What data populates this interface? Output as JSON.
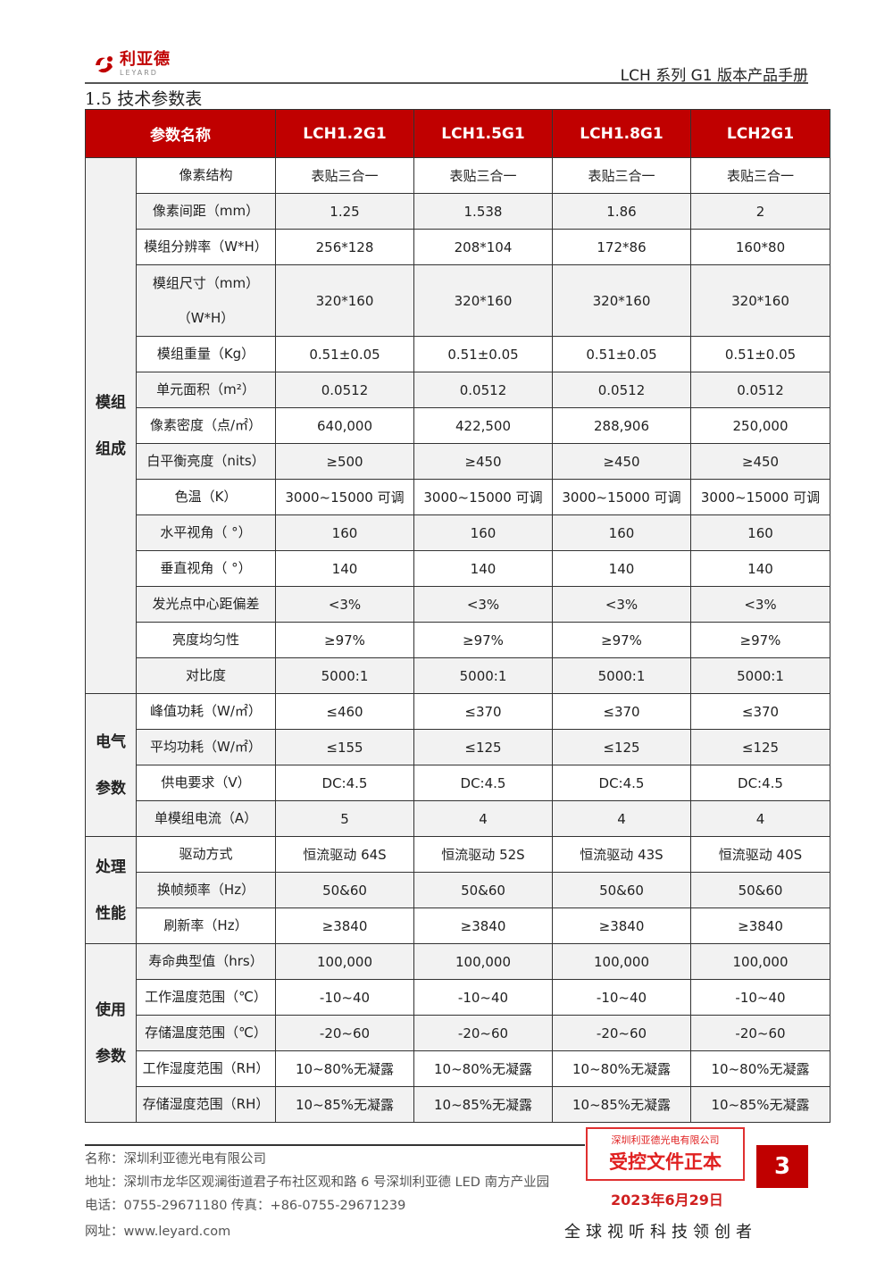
{
  "header": {
    "logo_cn": "利亚德",
    "logo_en": "LEYARD",
    "doc_title": "LCH 系列 G1 版本产品手册",
    "section_title": "1.5 技术参数表"
  },
  "table": {
    "columns": [
      "参数名称",
      "LCH1.2G1",
      "LCH1.5G1",
      "LCH1.8G1",
      "LCH2G1"
    ],
    "groups": [
      {
        "label_lines": [
          "模组",
          "组成"
        ],
        "rows": [
          {
            "param": "像素结构",
            "values": [
              "表贴三合一",
              "表贴三合一",
              "表贴三合一",
              "表贴三合一"
            ]
          },
          {
            "param": "像素间距（mm）",
            "values": [
              "1.25",
              "1.538",
              "1.86",
              "2"
            ]
          },
          {
            "param": "模组分辨率（W*H）",
            "values": [
              "256*128",
              "208*104",
              "172*86",
              "160*80"
            ]
          },
          {
            "param": "模组尺寸（mm）\n（W*H）",
            "values": [
              "320*160",
              "320*160",
              "320*160",
              "320*160"
            ],
            "tall": true
          },
          {
            "param": "模组重量（Kg）",
            "values": [
              "0.51±0.05",
              "0.51±0.05",
              "0.51±0.05",
              "0.51±0.05"
            ]
          },
          {
            "param": "单元面积（m²）",
            "values": [
              "0.0512",
              "0.0512",
              "0.0512",
              "0.0512"
            ]
          },
          {
            "param": "像素密度（点/㎡）",
            "values": [
              "640,000",
              "422,500",
              "288,906",
              "250,000"
            ]
          },
          {
            "param": "白平衡亮度（nits）",
            "values": [
              "≥500",
              "≥450",
              "≥450",
              "≥450"
            ]
          },
          {
            "param": "色温（K）",
            "values": [
              "3000~15000 可调",
              "3000~15000 可调",
              "3000~15000 可调",
              "3000~15000 可调"
            ]
          },
          {
            "param": "水平视角（ °）",
            "values": [
              "160",
              "160",
              "160",
              "160"
            ]
          },
          {
            "param": "垂直视角（ °）",
            "values": [
              "140",
              "140",
              "140",
              "140"
            ]
          },
          {
            "param": "发光点中心距偏差",
            "values": [
              "<3%",
              "<3%",
              "<3%",
              "<3%"
            ]
          },
          {
            "param": "亮度均匀性",
            "values": [
              "≥97%",
              "≥97%",
              "≥97%",
              "≥97%"
            ]
          },
          {
            "param": "对比度",
            "values": [
              "5000:1",
              "5000:1",
              "5000:1",
              "5000:1"
            ]
          }
        ]
      },
      {
        "label_lines": [
          "电气",
          "参数"
        ],
        "rows": [
          {
            "param": "峰值功耗（W/㎡）",
            "values": [
              "≤460",
              "≤370",
              "≤370",
              "≤370"
            ]
          },
          {
            "param": "平均功耗（W/㎡）",
            "values": [
              "≤155",
              "≤125",
              "≤125",
              "≤125"
            ]
          },
          {
            "param": "供电要求（V）",
            "values": [
              "DC:4.5",
              "DC:4.5",
              "DC:4.5",
              "DC:4.5"
            ]
          },
          {
            "param": "单模组电流（A）",
            "values": [
              "5",
              "4",
              "4",
              "4"
            ]
          }
        ]
      },
      {
        "label_lines": [
          "处理",
          "性能"
        ],
        "rows": [
          {
            "param": "驱动方式",
            "values": [
              "恒流驱动 64S",
              "恒流驱动 52S",
              "恒流驱动 43S",
              "恒流驱动 40S"
            ]
          },
          {
            "param": "换帧频率（Hz）",
            "values": [
              "50&60",
              "50&60",
              "50&60",
              "50&60"
            ]
          },
          {
            "param": "刷新率（Hz）",
            "values": [
              "≥3840",
              "≥3840",
              "≥3840",
              "≥3840"
            ]
          }
        ]
      },
      {
        "label_lines": [
          "使用",
          "参数"
        ],
        "rows": [
          {
            "param": "寿命典型值（hrs）",
            "values": [
              "100,000",
              "100,000",
              "100,000",
              "100,000"
            ]
          },
          {
            "param": "工作温度范围（℃）",
            "values": [
              "-10~40",
              "-10~40",
              "-10~40",
              "-10~40"
            ]
          },
          {
            "param": "存储温度范围（℃）",
            "values": [
              "-20~60",
              "-20~60",
              "-20~60",
              "-20~60"
            ]
          },
          {
            "param": "工作湿度范围（RH）",
            "values": [
              "10~80%无凝露",
              "10~80%无凝露",
              "10~80%无凝露",
              "10~80%无凝露"
            ]
          },
          {
            "param": "存储湿度范围（RH）",
            "values": [
              "10~85%无凝露",
              "10~85%无凝露",
              "10~85%无凝露",
              "10~85%无凝露"
            ]
          }
        ]
      }
    ]
  },
  "footer": {
    "name": "名称：深圳利亚德光电有限公司",
    "address": "地址：深圳市龙华区观澜街道君子布社区观和路 6 号深圳利亚德 LED 南方产业园",
    "phone": "电话：0755-29671180  传真：+86-0755-29671239",
    "website": "网址：www.leyard.com",
    "stamp_company": "深圳利亚德光电有限公司",
    "stamp_text": "受控文件正本",
    "stamp_date": "2023年6月29日",
    "page_number": "3",
    "slogan": "全球视听科技领创者"
  },
  "colors": {
    "brand_red": "#c00000",
    "stamp_red": "#e02020",
    "row_alt": "#f2f2f2"
  }
}
